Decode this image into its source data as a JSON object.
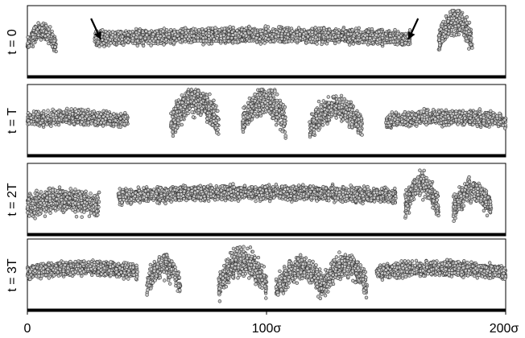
{
  "chart_data": {
    "type": "scatter",
    "xlim": [
      0,
      200
    ],
    "x_tick_labels": [
      "0",
      "100σ",
      "200σ"
    ],
    "x_ticks": [
      0,
      100,
      200
    ],
    "panels": [
      {
        "label": "t = 0",
        "description_of_bands": [
          {
            "x_start": 0,
            "x_end": 12,
            "level": 0.45,
            "spread": 0.35
          },
          {
            "x_start": 28,
            "x_end": 160,
            "level": 0.55,
            "spread": 0.3
          },
          {
            "x_start": 172,
            "x_end": 186,
            "level": 0.5,
            "spread": 0.55
          }
        ],
        "arrows_at_x": [
          30,
          160
        ]
      },
      {
        "label": "t = T",
        "description_of_bands": [
          {
            "x_start": 0,
            "x_end": 42,
            "level": 0.5,
            "spread": 0.3
          },
          {
            "x_start": 60,
            "x_end": 80,
            "level": 0.45,
            "spread": 0.6
          },
          {
            "x_start": 90,
            "x_end": 108,
            "level": 0.45,
            "spread": 0.6
          },
          {
            "x_start": 118,
            "x_end": 140,
            "level": 0.4,
            "spread": 0.5
          },
          {
            "x_start": 150,
            "x_end": 200,
            "level": 0.5,
            "spread": 0.3
          }
        ]
      },
      {
        "label": "t = 2T",
        "description_of_bands": [
          {
            "x_start": 0,
            "x_end": 30,
            "level": 0.4,
            "spread": 0.5
          },
          {
            "x_start": 38,
            "x_end": 154,
            "level": 0.55,
            "spread": 0.3
          },
          {
            "x_start": 158,
            "x_end": 172,
            "level": 0.4,
            "spread": 0.55
          },
          {
            "x_start": 178,
            "x_end": 194,
            "level": 0.35,
            "spread": 0.5
          }
        ]
      },
      {
        "label": "t = 3T",
        "description_of_bands": [
          {
            "x_start": 0,
            "x_end": 46,
            "level": 0.55,
            "spread": 0.3
          },
          {
            "x_start": 50,
            "x_end": 64,
            "level": 0.35,
            "spread": 0.5
          },
          {
            "x_start": 80,
            "x_end": 100,
            "level": 0.35,
            "spread": 0.6
          },
          {
            "x_start": 104,
            "x_end": 124,
            "level": 0.3,
            "spread": 0.5
          },
          {
            "x_start": 124,
            "x_end": 142,
            "level": 0.35,
            "spread": 0.5
          },
          {
            "x_start": 146,
            "x_end": 200,
            "level": 0.55,
            "spread": 0.3
          }
        ]
      }
    ],
    "marker": {
      "shape": "circle",
      "fill": "#c8c8c8",
      "stroke": "#333333"
    },
    "grid": false,
    "legend": "none"
  }
}
